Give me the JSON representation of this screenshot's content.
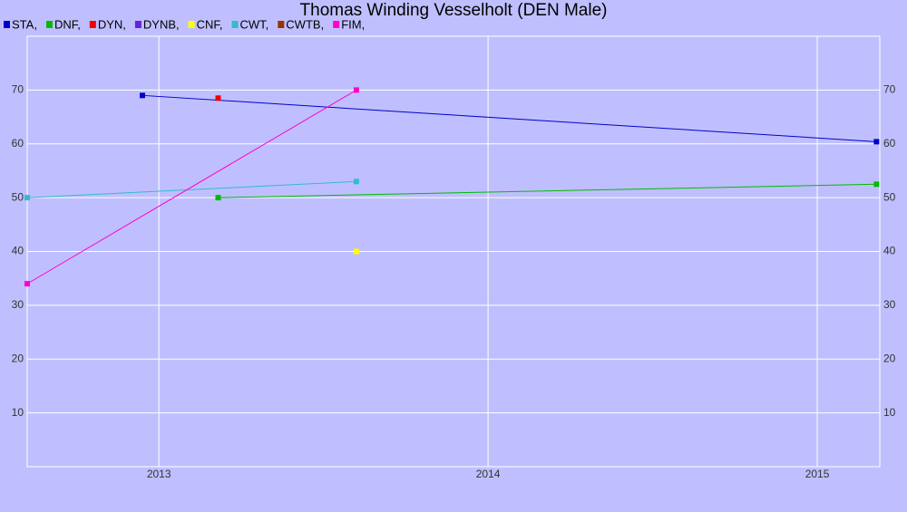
{
  "chart_data": {
    "type": "line",
    "title": "Thomas Winding Vesselholt (DEN Male)",
    "xlim": [
      2012.6,
      2015.19
    ],
    "xticks": [
      2013,
      2014,
      2015
    ],
    "ylim": [
      0,
      80
    ],
    "yticks": [
      10,
      20,
      30,
      40,
      50,
      60,
      70
    ],
    "grid": true,
    "series": [
      {
        "name": "STA,",
        "color": "#0000cc",
        "x": [
          2012.95,
          2015.18
        ],
        "values": [
          69,
          60.4
        ]
      },
      {
        "name": "DNF,",
        "color": "#00bb00",
        "x": [
          2013.18,
          2015.18
        ],
        "values": [
          50,
          52.5
        ]
      },
      {
        "name": "DYN,",
        "color": "#ee0000",
        "x": [
          2013.18
        ],
        "values": [
          68.5
        ]
      },
      {
        "name": "DYNB,",
        "color": "#6a1fe0",
        "x": [],
        "values": []
      },
      {
        "name": "CNF,",
        "color": "#ffff00",
        "x": [
          2013.6
        ],
        "values": [
          40
        ]
      },
      {
        "name": "CWT,",
        "color": "#33bbcc",
        "x": [
          2012.6,
          2013.6
        ],
        "values": [
          50,
          53
        ]
      },
      {
        "name": "CWTB,",
        "color": "#993300",
        "x": [],
        "values": []
      },
      {
        "name": "FIM,",
        "color": "#ff00cc",
        "x": [
          2012.6,
          2013.6
        ],
        "values": [
          34,
          70
        ]
      }
    ]
  }
}
